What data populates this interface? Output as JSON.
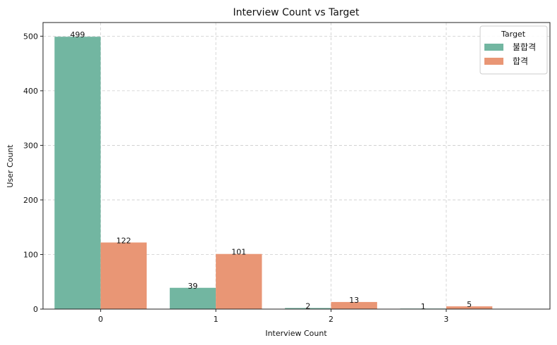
{
  "chart_data": {
    "type": "bar",
    "title": "Interview Count vs Target",
    "xlabel": "Interview Count",
    "ylabel": "User Count",
    "categories": [
      "0",
      "1",
      "2",
      "3"
    ],
    "series": [
      {
        "name": "불합격",
        "values": [
          499,
          39,
          2,
          1
        ],
        "color": "#72b6a1"
      },
      {
        "name": "합격",
        "values": [
          122,
          101,
          13,
          5
        ],
        "color": "#e99675"
      }
    ],
    "ylim": [
      0,
      525
    ],
    "yticks": [
      0,
      100,
      200,
      300,
      400,
      500
    ],
    "grid": true,
    "legend": {
      "title": "Target",
      "position": "top-right"
    }
  }
}
